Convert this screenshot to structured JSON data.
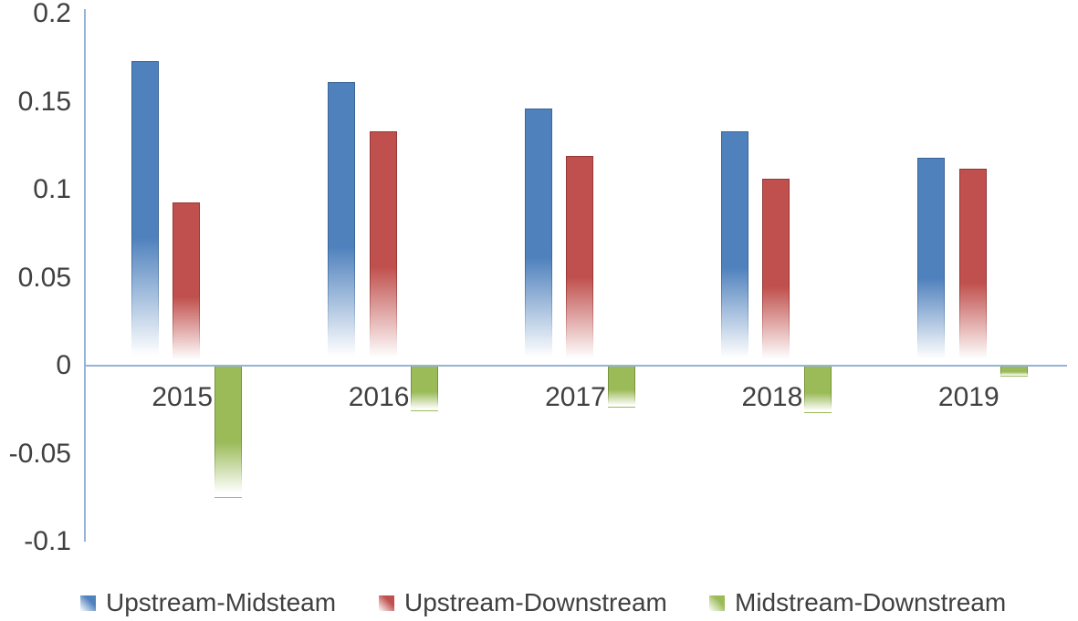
{
  "chart_data": {
    "type": "bar",
    "title": "",
    "xlabel": "",
    "ylabel": "",
    "categories": [
      "2015",
      "2016",
      "2017",
      "2018",
      "2019"
    ],
    "series": [
      {
        "name": "Upstream-Midsteam",
        "color": "#4F81BD",
        "edge_color": "#3A6496",
        "values": [
          0.173,
          0.161,
          0.146,
          0.133,
          0.118
        ]
      },
      {
        "name": "Upstream-Downstream",
        "color": "#C0504D",
        "edge_color": "#953735",
        "values": [
          0.093,
          0.133,
          0.119,
          0.106,
          0.112
        ]
      },
      {
        "name": "Midstream-Downstream",
        "color": "#9BBB59",
        "edge_color": "#77933C",
        "values": [
          -0.075,
          -0.026,
          -0.024,
          -0.027,
          -0.006
        ]
      }
    ],
    "y_ticks": [
      0.2,
      0.15,
      0.1,
      0.05,
      0,
      -0.05,
      -0.1
    ],
    "ylim": [
      -0.1,
      0.2
    ],
    "grid": "zero-line-only",
    "legend_position": "bottom",
    "axis_color": "#95B3D7",
    "text_color": "#404040",
    "bar_style": "gradient-fade-to-white"
  }
}
